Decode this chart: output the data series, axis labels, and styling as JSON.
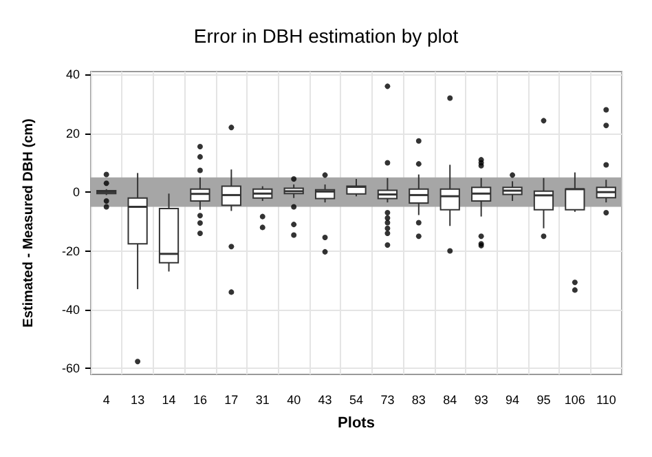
{
  "chart_data": {
    "type": "box",
    "title": "Error in DBH estimation by plot",
    "xlabel": "Plots",
    "ylabel": "Estimated - Measured DBH (cm)",
    "categories": [
      "4",
      "13",
      "14",
      "16",
      "17",
      "31",
      "40",
      "43",
      "54",
      "73",
      "83",
      "84",
      "93",
      "94",
      "95",
      "106",
      "110"
    ],
    "ylim": [
      -62,
      41
    ],
    "yticks": [
      -60,
      -40,
      -20,
      0,
      20,
      40
    ],
    "grid": true,
    "bands": [
      {
        "axis": "y",
        "from": -5,
        "to": 5,
        "color": "#a6a6a6"
      }
    ],
    "boxes": [
      {
        "low": -1,
        "q1": -0.5,
        "median": 0,
        "q3": 0.5,
        "high": 1,
        "outliers": [
          6,
          3,
          -3,
          -5
        ]
      },
      {
        "low": -33,
        "q1": -17.6,
        "median": -5,
        "q3": -2,
        "high": 6.5,
        "outliers": [
          -57.6
        ]
      },
      {
        "low": -27,
        "q1": -24,
        "median": -21,
        "q3": -5.6,
        "high": -0.5
      },
      {
        "low": -6,
        "q1": -3,
        "median": -0.6,
        "q3": 1,
        "high": 5,
        "outliers": [
          15.5,
          12,
          7.4,
          -8,
          -10.5,
          -14
        ]
      },
      {
        "low": -6.4,
        "q1": -4.5,
        "median": -1,
        "q3": 2,
        "high": 7.7,
        "outliers": [
          22,
          -18.5,
          -34
        ]
      },
      {
        "low": -3,
        "q1": -2,
        "median": -0.5,
        "q3": 1,
        "high": 2,
        "outliers": [
          -8.3,
          -12
        ]
      },
      {
        "low": -2,
        "q1": -0.5,
        "median": 0.3,
        "q3": 1.3,
        "high": 2.6,
        "outliers": [
          4.5,
          -5,
          -11,
          -14.6
        ]
      },
      {
        "low": -3.5,
        "q1": -2.2,
        "median": 0.2,
        "q3": 0.8,
        "high": 2.6,
        "outliers": [
          5.8,
          -15.4,
          -20.3
        ]
      },
      {
        "low": -1.4,
        "q1": -0.6,
        "median": 1.8,
        "q3": 2,
        "high": 4.5
      },
      {
        "low": -3.5,
        "q1": -2.2,
        "median": -0.8,
        "q3": 0.6,
        "high": 4.8,
        "outliers": [
          36,
          10,
          -7,
          -8.8,
          -10.4,
          -12.3,
          -14,
          -18
        ]
      },
      {
        "low": -7.8,
        "q1": -3.7,
        "median": -1,
        "q3": 1,
        "high": 6,
        "outliers": [
          17.4,
          9.6,
          -10.4,
          -15
        ]
      },
      {
        "low": -11.5,
        "q1": -6,
        "median": -1.4,
        "q3": 1,
        "high": 9.3,
        "outliers": [
          32,
          -20
        ]
      },
      {
        "low": -8.3,
        "q1": -3,
        "median": -0.5,
        "q3": 1.6,
        "high": 4.8,
        "outliers": [
          11,
          10,
          9,
          -15,
          -17.6,
          -18.2
        ]
      },
      {
        "low": -3,
        "q1": -0.8,
        "median": 0.5,
        "q3": 1.6,
        "high": 3.7,
        "outliers": [
          5.8
        ]
      },
      {
        "low": -12.3,
        "q1": -6,
        "median": -1.1,
        "q3": 0.3,
        "high": 4.8,
        "outliers": [
          24.3,
          -15
        ]
      },
      {
        "low": -6.7,
        "q1": -6,
        "median": 1,
        "q3": 1,
        "high": 6.7,
        "outliers": [
          -30.7,
          -33.3
        ]
      },
      {
        "low": -3.5,
        "q1": -1.9,
        "median": 0,
        "q3": 1.6,
        "high": 4.2,
        "outliers": [
          28,
          22.7,
          9.3,
          -7
        ]
      }
    ]
  }
}
